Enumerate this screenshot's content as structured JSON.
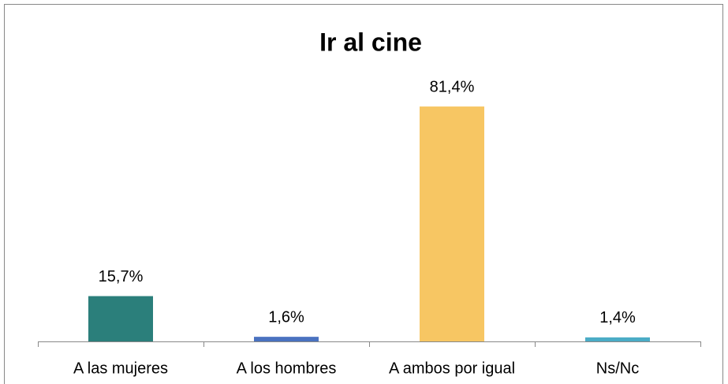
{
  "chart_data": {
    "type": "bar",
    "title": "Ir al cine",
    "categories": [
      "A las mujeres",
      "A los hombres",
      "A ambos por igual",
      "Ns/Nc"
    ],
    "values": [
      15.7,
      1.6,
      81.4,
      1.4
    ],
    "value_labels": [
      "15,7%",
      "1,6%",
      "81,4%",
      "1,4%"
    ],
    "colors": [
      "#2b7f7b",
      "#4a72c0",
      "#f7c663",
      "#4bacc6"
    ]
  }
}
